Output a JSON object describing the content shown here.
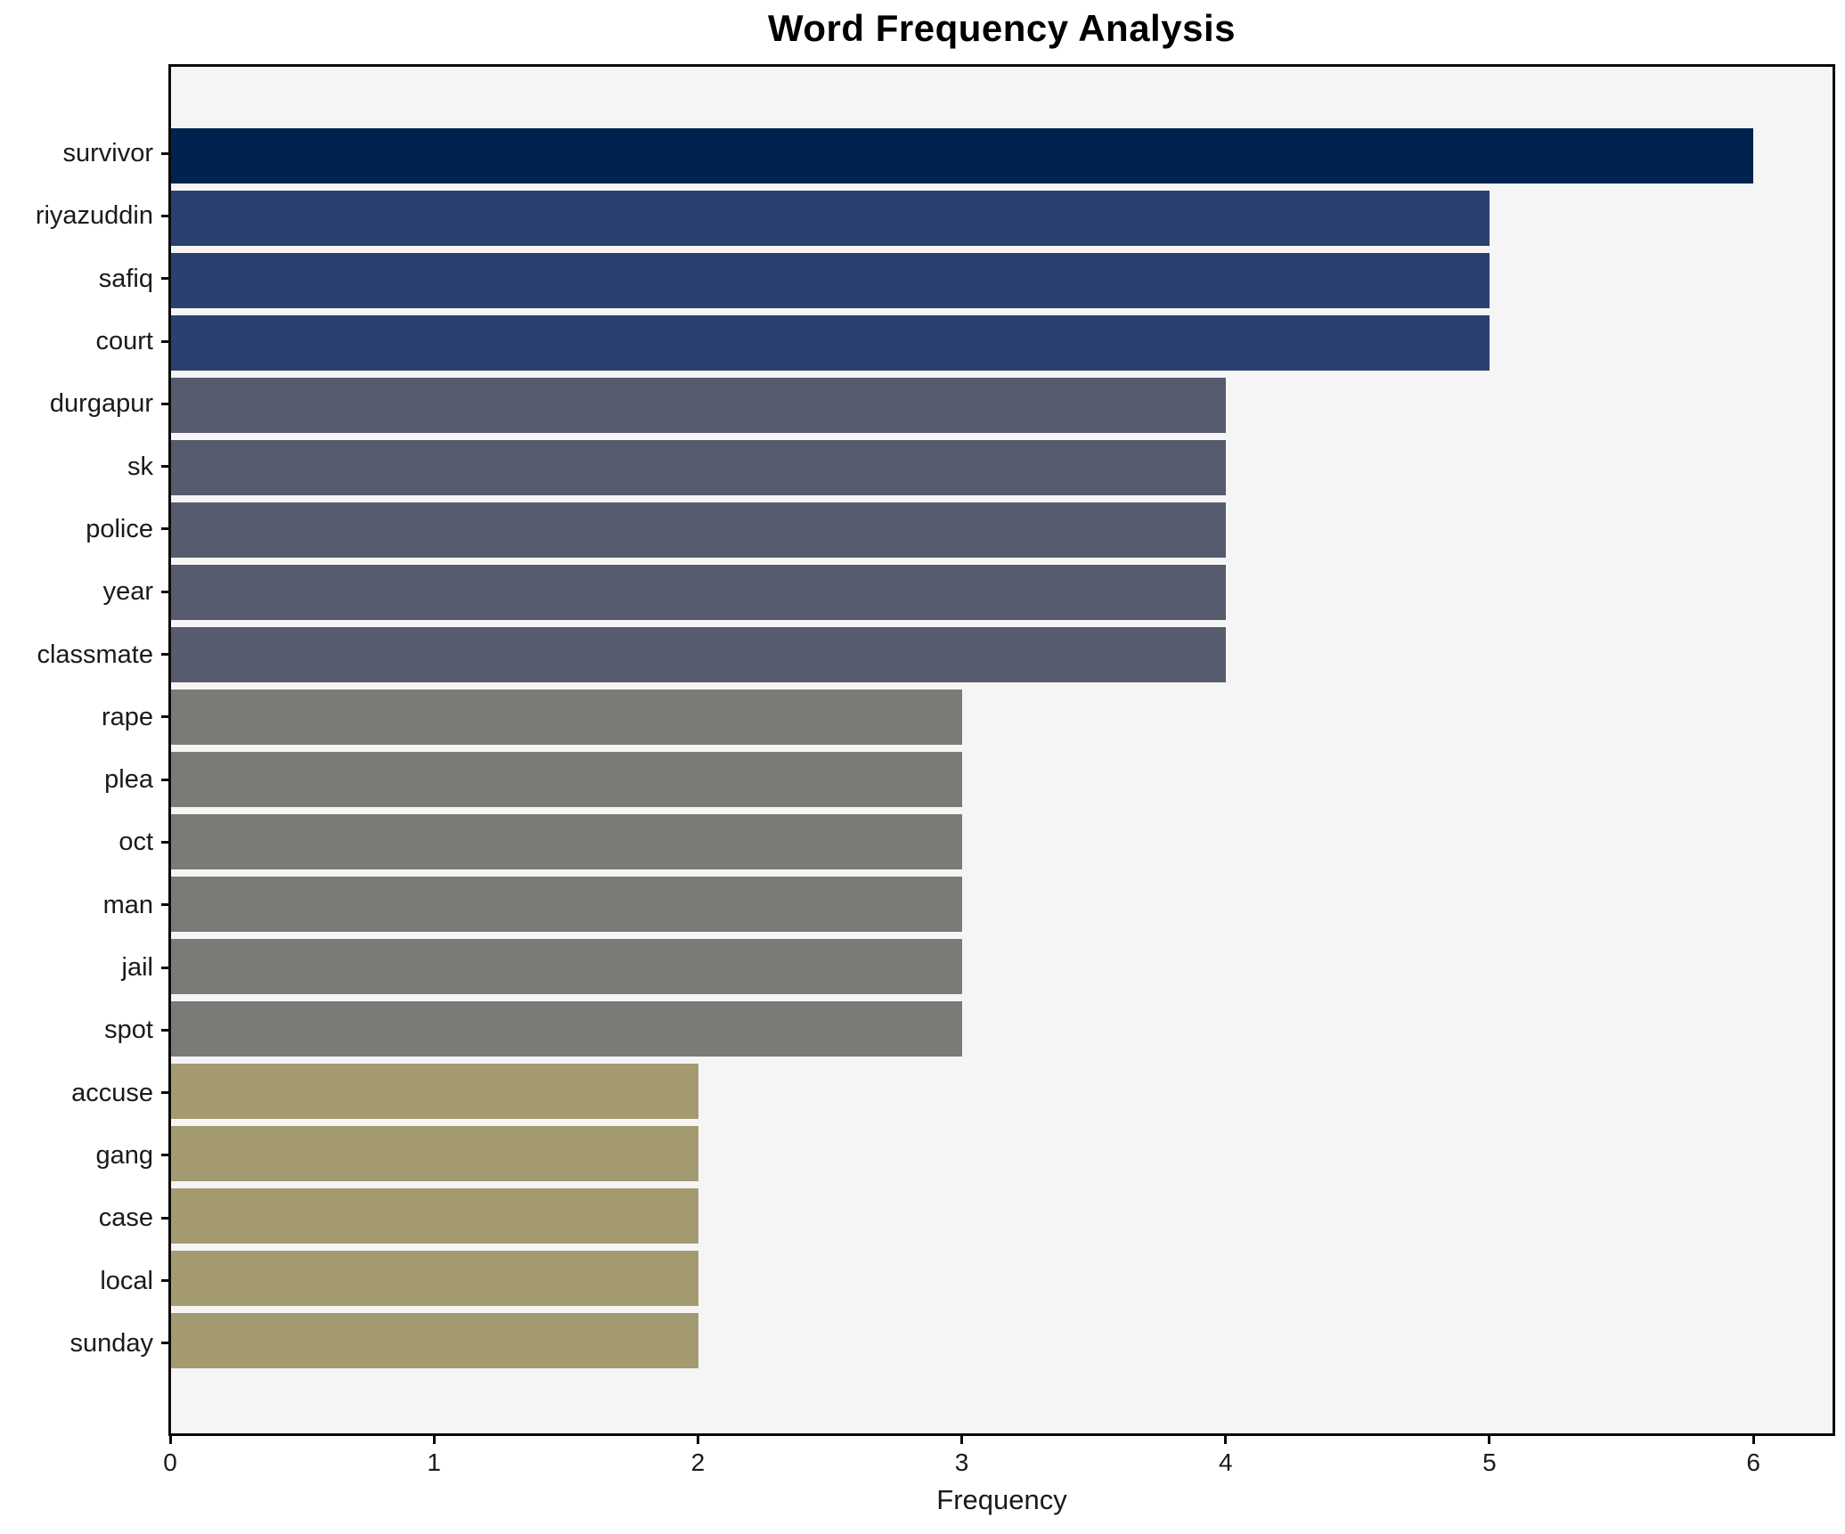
{
  "chart_data": {
    "type": "bar",
    "orientation": "horizontal",
    "title": "Word Frequency Analysis",
    "xlabel": "Frequency",
    "ylabel": "",
    "categories": [
      "survivor",
      "riyazuddin",
      "safiq",
      "court",
      "durgapur",
      "sk",
      "police",
      "year",
      "classmate",
      "rape",
      "plea",
      "oct",
      "man",
      "jail",
      "spot",
      "accuse",
      "gang",
      "case",
      "local",
      "sunday"
    ],
    "values": [
      6,
      5,
      5,
      5,
      4,
      4,
      4,
      4,
      4,
      3,
      3,
      3,
      3,
      3,
      3,
      2,
      2,
      2,
      2,
      2
    ],
    "bar_colors": [
      "#00224E",
      "#2B406E",
      "#2B406E",
      "#2B406E",
      "#565C6E",
      "#565C6E",
      "#565C6E",
      "#565C6E",
      "#565C6E",
      "#7B7A77",
      "#7B7A77",
      "#7B7A77",
      "#7B7A77",
      "#7B7A77",
      "#7B7A77",
      "#A49A70",
      "#A49A70",
      "#A49A70",
      "#A49A70",
      "#A49A70"
    ],
    "xlim": [
      0,
      6.3
    ],
    "xticks": [
      0,
      1,
      2,
      3,
      4,
      5,
      6
    ],
    "grid": false,
    "legend": null,
    "plot_background": "#F5F5F6",
    "figure_background": "#FFFFFF",
    "spine_color": "#0A0A0A"
  }
}
